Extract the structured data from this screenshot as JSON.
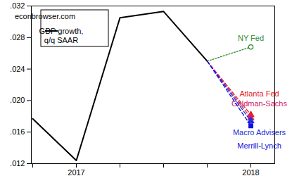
{
  "chart_data": {
    "type": "line",
    "subtitle": "econbrowser.com",
    "categories": [
      null,
      "2017",
      null,
      null,
      null,
      "2018"
    ],
    "series": [
      {
        "name": "GDP growth, q/q SAAR",
        "color": "#000000",
        "line_style": "solid",
        "values": [
          0.0177,
          0.0124,
          0.0305,
          0.0313,
          0.025,
          null
        ]
      },
      {
        "name": "NY Fed",
        "color": "#2e8b2e",
        "line_style": "dotted",
        "marker": "circle",
        "values": [
          null,
          null,
          null,
          null,
          0.025,
          0.0268
        ]
      },
      {
        "name": "Atlanta Fed",
        "color": "#e8202a",
        "line_style": "dashed",
        "marker": "triangle",
        "values": [
          null,
          null,
          null,
          null,
          0.025,
          0.0182
        ]
      },
      {
        "name": "Goldman-Sachs",
        "color": "#d0206a",
        "line_style": "dashed",
        "marker": "triangle",
        "values": [
          null,
          null,
          null,
          null,
          0.025,
          0.0178
        ]
      },
      {
        "name": "Macro Advisers",
        "color": "#2030d8",
        "line_style": "dashed",
        "marker": "triangle",
        "values": [
          null,
          null,
          null,
          null,
          0.025,
          0.0174
        ]
      },
      {
        "name": "Merrill-Lynch",
        "color": "#1010e0",
        "line_style": "dashed",
        "marker": "square",
        "values": [
          null,
          null,
          null,
          null,
          0.025,
          0.0168
        ]
      }
    ],
    "ylim": [
      0.012,
      0.032
    ],
    "yticks": [
      {
        "value": 0.012,
        "label": ".012"
      },
      {
        "value": 0.016,
        "label": ".016"
      },
      {
        "value": 0.02,
        "label": ".020"
      },
      {
        "value": 0.024,
        "label": ".024"
      },
      {
        "value": 0.028,
        "label": ".028"
      },
      {
        "value": 0.032,
        "label": ".032"
      }
    ],
    "grid": false,
    "legend": "top-left"
  }
}
